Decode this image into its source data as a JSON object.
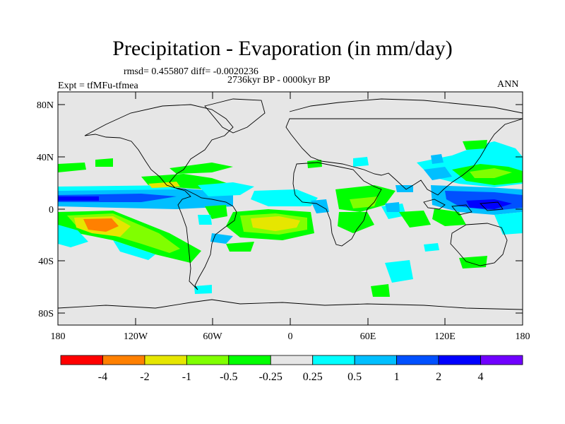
{
  "header": {
    "title": "Precipitation - Evaporation (in mm/day)",
    "stats": "rmsd= 0.455807 diff= -0.0020236",
    "period": "2736kyr BP - 0000kyr BP",
    "experiment": "Expt = tfMFu-tfmea",
    "season": "ANN"
  },
  "axes": {
    "lat_ticks": [
      "80N",
      "40N",
      "0",
      "40S",
      "80S"
    ],
    "lon_ticks": [
      "180",
      "120W",
      "60W",
      "0",
      "60E",
      "120E",
      "180"
    ]
  },
  "colorbar": {
    "colors": [
      "#ff0000",
      "#ff8000",
      "#e6e600",
      "#80ff00",
      "#00ff00",
      "#e6e6e6",
      "#00ffff",
      "#00bfff",
      "#0050ff",
      "#0000ff",
      "#7000ff"
    ],
    "labels": [
      "-4",
      "-2",
      "-1",
      "-0.5",
      "-0.25",
      "0.25",
      "0.5",
      "1",
      "2",
      "4"
    ]
  },
  "palette": {
    "background": "#e6e6e6",
    "coast": "#000000"
  }
}
